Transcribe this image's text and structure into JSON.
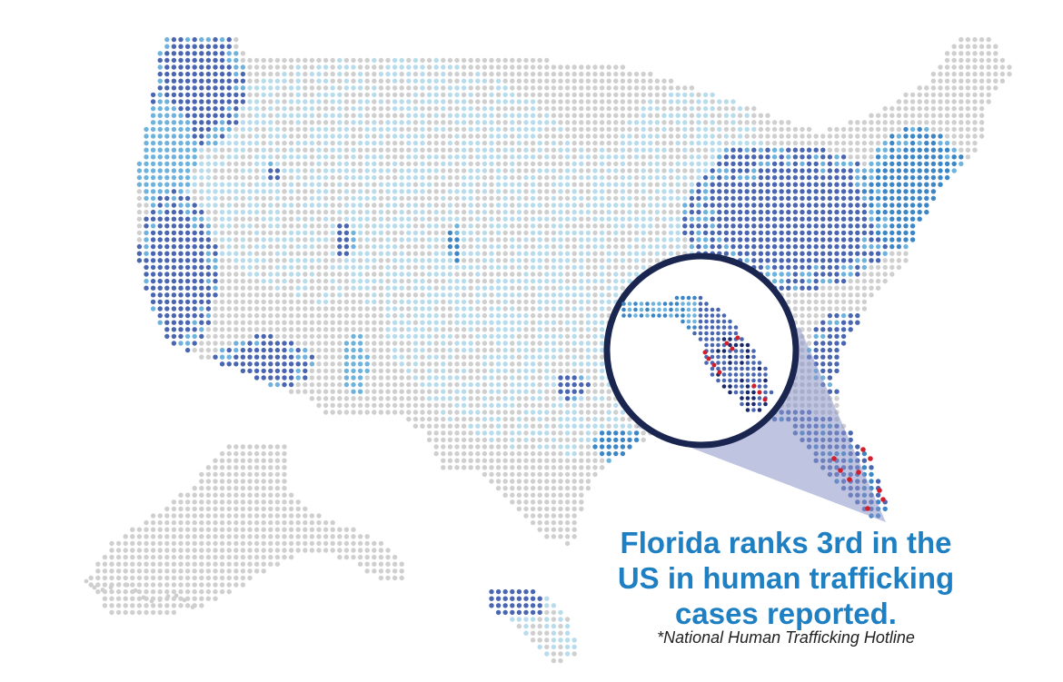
{
  "headline": {
    "line1": "Florida ranks 3rd in the",
    "line2": "US in human trafficking",
    "line3": "cases reported."
  },
  "source_note": "*National Human Trafficking Hotline",
  "map": {
    "regions": [
      "Contiguous US",
      "Alaska",
      "Hawaii"
    ],
    "highlighted_state": "Florida",
    "palette": {
      "no_data": "#cfcfcf",
      "level1": "#b9dcec",
      "level2": "#6fb3dc",
      "level3": "#3d86c6",
      "level4": "#4a66b0",
      "hotspot": "#d0202e",
      "lens_border": "#1a2550",
      "callout_beam": "#8a94c6",
      "caption_text": "#1e7fc2"
    }
  }
}
